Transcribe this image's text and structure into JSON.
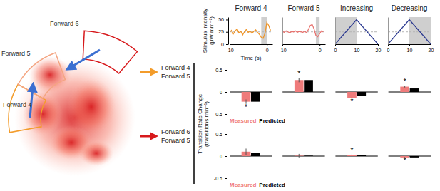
{
  "chart_data": [
    {
      "type": "line",
      "title": "Forward 4",
      "x": [
        -10,
        -9.5,
        -9,
        -8.5,
        -8,
        -7.5,
        -7,
        -6.5,
        -6,
        -5.5,
        -5,
        -4.5,
        -4,
        -3.5,
        -3,
        -2.5,
        -2,
        -1.5,
        -1,
        -0.5,
        0,
        0.5,
        1
      ],
      "series": [
        {
          "color": "#f0962a",
          "values": [
            24,
            28,
            21,
            27,
            31,
            23,
            26,
            19,
            25,
            30,
            24,
            27,
            22,
            26,
            29,
            24,
            20,
            14,
            12,
            22,
            44,
            38,
            28
          ]
        }
      ],
      "xlim": [
        -10,
        1.5
      ],
      "xticks": [
        -10,
        0
      ],
      "ylim": [
        0,
        55
      ],
      "yticks": [
        0,
        25,
        50
      ],
      "xlabel": "Time (s)",
      "ylabel": [
        "Stimulus Intensity",
        "(μW mm⁻²)"
      ],
      "shade": [
        -1.5,
        0
      ],
      "reference_line": 25
    },
    {
      "type": "line",
      "title": "Forward 5",
      "x": [
        -10,
        -9.5,
        -9,
        -8.5,
        -8,
        -7.5,
        -7,
        -6.5,
        -6,
        -5.5,
        -5,
        -4.5,
        -4,
        -3.5,
        -3,
        -2.5,
        -2,
        -1.5,
        -1,
        -0.5,
        0,
        0.5,
        1
      ],
      "series": [
        {
          "color": "#e8736f",
          "values": [
            26,
            24,
            27,
            25,
            23,
            26,
            25,
            27,
            24,
            26,
            25,
            24,
            27,
            23,
            30,
            38,
            40,
            31,
            18,
            15,
            21,
            27,
            25
          ]
        }
      ],
      "xlim": [
        -10,
        1.5
      ],
      "xticks": [
        -10,
        0
      ],
      "ylim": [
        0,
        55
      ],
      "tick_labels": "x",
      "shade": [
        -1,
        0
      ],
      "reference_line": 25
    },
    {
      "type": "line",
      "title": "Increasing",
      "x": [
        0,
        10,
        20
      ],
      "series": [
        {
          "color": "#2b3990",
          "values": [
            0,
            50,
            0
          ]
        }
      ],
      "xlim": [
        0,
        20
      ],
      "xticks": [
        0,
        10,
        20
      ],
      "ylim": [
        0,
        55
      ],
      "tick_labels": "x",
      "shade": [
        0,
        10
      ],
      "reference_line": 25
    },
    {
      "type": "line",
      "title": "Decreasing",
      "x": [
        0,
        10,
        20
      ],
      "series": [
        {
          "color": "#2b3990",
          "values": [
            0,
            50,
            0
          ]
        }
      ],
      "xlim": [
        0,
        20
      ],
      "xticks": [
        0,
        10,
        20
      ],
      "ylim": [
        0,
        55
      ],
      "tick_labels": "x",
      "shade": [
        10,
        20
      ],
      "reference_line": 25
    },
    {
      "type": "bar",
      "row_label": [
        "Forward 4",
        "Forward 5"
      ],
      "categories": [
        null,
        null,
        null,
        null
      ],
      "series": [
        {
          "name": "Measured",
          "color": "#ef7b7b",
          "values": [
            -0.22,
            0.27,
            -0.13,
            0.12
          ],
          "errors": [
            0.05,
            0.05,
            0.02,
            0.02
          ],
          "annotations": [
            "*",
            "*",
            "*",
            "*"
          ]
        },
        {
          "name": "Predicted",
          "color": "#000000",
          "values": [
            -0.22,
            0.27,
            -0.09,
            0.08
          ]
        }
      ],
      "ylim": [
        -0.5,
        0.5
      ],
      "yticks": [
        -0.5,
        0,
        0.5
      ],
      "ylabel": [
        "Transition Rate Change",
        "(transitions min⁻¹)"
      ]
    },
    {
      "type": "bar",
      "row_label": [
        "Forward 6",
        "Forward 5"
      ],
      "categories": [
        null,
        null,
        null,
        null
      ],
      "series": [
        {
          "name": "Measured",
          "color": "#ef7b7b",
          "values": [
            0.1,
            0.01,
            0.03,
            -0.03
          ],
          "errors": [
            0.07,
            0.04,
            0.01,
            0.01
          ],
          "annotations": [
            null,
            null,
            "*",
            "*"
          ]
        },
        {
          "name": "Predicted",
          "color": "#000000",
          "values": [
            0.07,
            0.01,
            0.02,
            -0.03
          ]
        }
      ],
      "ylim": [
        -0.5,
        0.5
      ],
      "yticks": [
        -0.5,
        0,
        0.5
      ]
    }
  ],
  "diagram": {
    "regions": [
      "Forward 4",
      "Forward 5",
      "Forward 6"
    ]
  }
}
